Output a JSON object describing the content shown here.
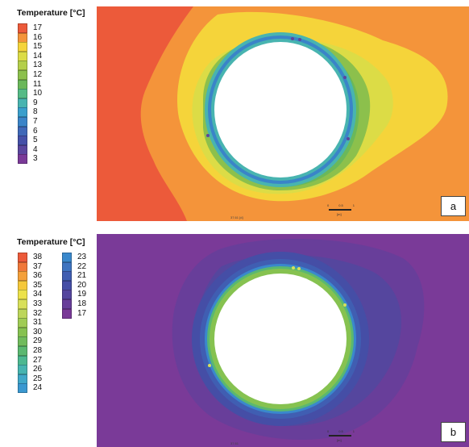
{
  "panels": [
    {
      "id": "a",
      "label": "a",
      "legend_title": "Temperature [°C]",
      "legend": [
        {
          "value": "17",
          "color": "#ec5a3a"
        },
        {
          "value": "16",
          "color": "#f4943a"
        },
        {
          "value": "15",
          "color": "#f5d43a"
        },
        {
          "value": "14",
          "color": "#dcdc46"
        },
        {
          "value": "13",
          "color": "#b4cf4a"
        },
        {
          "value": "12",
          "color": "#8cc04c"
        },
        {
          "value": "11",
          "color": "#6ab85a"
        },
        {
          "value": "10",
          "color": "#55bb86"
        },
        {
          "value": "9",
          "color": "#48b4b0"
        },
        {
          "value": "8",
          "color": "#3a9fcc"
        },
        {
          "value": "7",
          "color": "#3a84c8"
        },
        {
          "value": "6",
          "color": "#3f68b8"
        },
        {
          "value": "5",
          "color": "#4550a8"
        },
        {
          "value": "4",
          "color": "#5a469e"
        },
        {
          "value": "3",
          "color": "#7a3a98"
        }
      ],
      "scale_ticks": [
        "0",
        "0.5",
        "1"
      ],
      "scale_unit": "[m]",
      "footer_text": "37.61 [d]"
    },
    {
      "id": "b",
      "label": "b",
      "legend_title": "Temperature [°C]",
      "legend": [
        {
          "value": "38",
          "color": "#ec5a3a"
        },
        {
          "value": "37",
          "color": "#f0783a"
        },
        {
          "value": "36",
          "color": "#f4a03a"
        },
        {
          "value": "35",
          "color": "#f5c83a"
        },
        {
          "value": "34",
          "color": "#ece24a"
        },
        {
          "value": "33",
          "color": "#d8e05a"
        },
        {
          "value": "32",
          "color": "#bcd65a"
        },
        {
          "value": "31",
          "color": "#a0cc54"
        },
        {
          "value": "30",
          "color": "#86c250"
        },
        {
          "value": "29",
          "color": "#70bb5c"
        },
        {
          "value": "28",
          "color": "#5ab870"
        },
        {
          "value": "27",
          "color": "#4cb890"
        },
        {
          "value": "26",
          "color": "#46b4b0"
        },
        {
          "value": "25",
          "color": "#40a8c8"
        },
        {
          "value": "24",
          "color": "#3a98d0"
        },
        {
          "value": "23",
          "color": "#3a88cc"
        },
        {
          "value": "22",
          "color": "#3e74c0"
        },
        {
          "value": "21",
          "color": "#405eb2"
        },
        {
          "value": "20",
          "color": "#454ea6"
        },
        {
          "value": "19",
          "color": "#55469e"
        },
        {
          "value": "18",
          "color": "#683e9a"
        },
        {
          "value": "17",
          "color": "#7a3a98"
        }
      ],
      "scale_ticks": [
        "0",
        "0.5",
        "1"
      ],
      "scale_unit": "[m]",
      "footer_text": "37.61"
    }
  ]
}
